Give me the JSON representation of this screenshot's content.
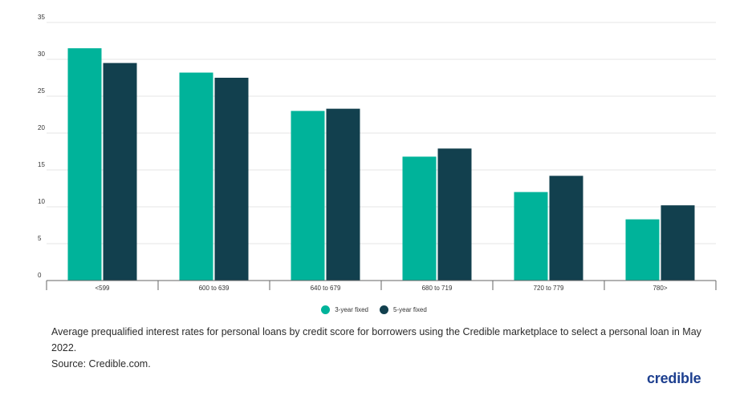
{
  "chart_data": {
    "type": "bar",
    "categories": [
      "<599",
      "600 to 639",
      "640 to 679",
      "680 to 719",
      "720 to 779",
      "780>"
    ],
    "series": [
      {
        "name": "3-year fixed",
        "color": "#00b39a",
        "values": [
          31.5,
          28.2,
          23.0,
          16.8,
          12.0,
          8.3
        ]
      },
      {
        "name": "5-year fixed",
        "color": "#12404e",
        "values": [
          29.5,
          27.5,
          23.3,
          17.9,
          14.2,
          10.2
        ]
      }
    ],
    "yticks": [
      0,
      5,
      10,
      15,
      20,
      25,
      30,
      35
    ],
    "ylim": [
      0,
      35
    ],
    "grid": true,
    "legend_position": "bottom-center"
  },
  "caption": {
    "line1": "Average prequalified interest rates for personal loans by credit score for borrowers using the Credible marketplace to select a personal loan in May 2022.",
    "line2": "Source: Credible.com."
  },
  "brand": {
    "logo_text": "credible",
    "color": "#1d3f8f"
  }
}
